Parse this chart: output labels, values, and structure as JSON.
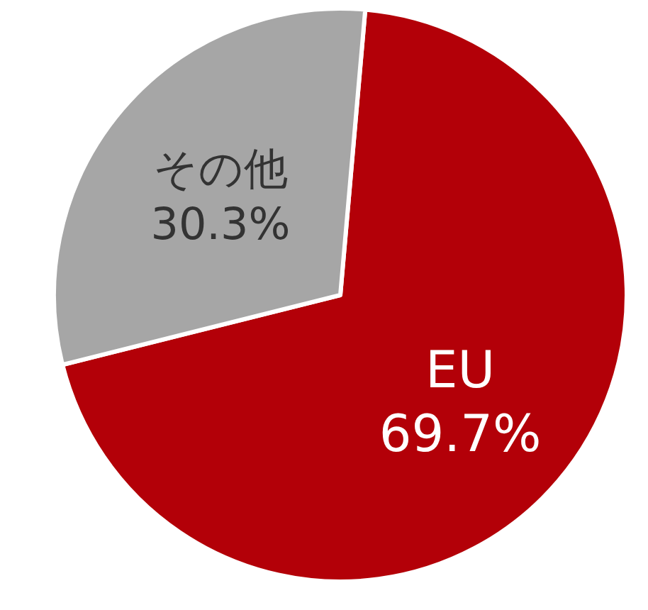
{
  "chart_data": {
    "type": "pie",
    "categories": [
      "EU",
      "その他"
    ],
    "values": [
      69.7,
      30.3
    ],
    "value_labels": [
      "69.7%",
      "30.3%"
    ],
    "colors": [
      "#b30008",
      "#a6a6a6"
    ]
  }
}
